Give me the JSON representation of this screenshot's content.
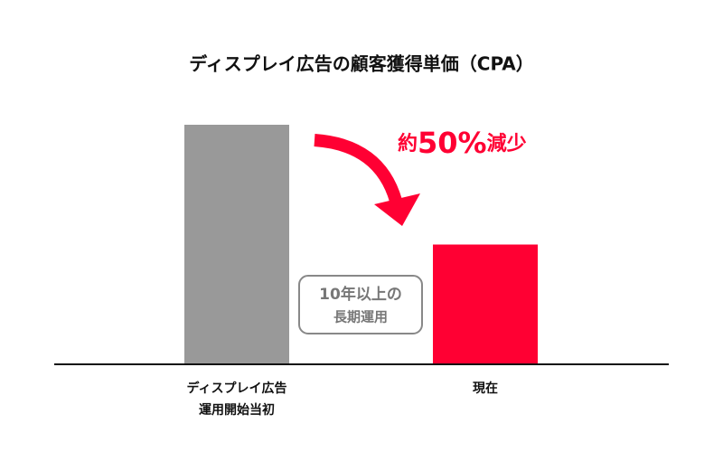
{
  "chart_data": {
    "type": "bar",
    "title": "ディスプレイ広告の顧客獲得単価（CPA）",
    "categories": [
      "ディスプレイ広告\n運用開始当初",
      "現在"
    ],
    "values": [
      100,
      50
    ],
    "colors": [
      "#999999",
      "#ff0033"
    ],
    "annotation": [
      "約",
      "50%",
      "減少"
    ],
    "badge": [
      "10年以上の",
      "長期運用"
    ]
  }
}
